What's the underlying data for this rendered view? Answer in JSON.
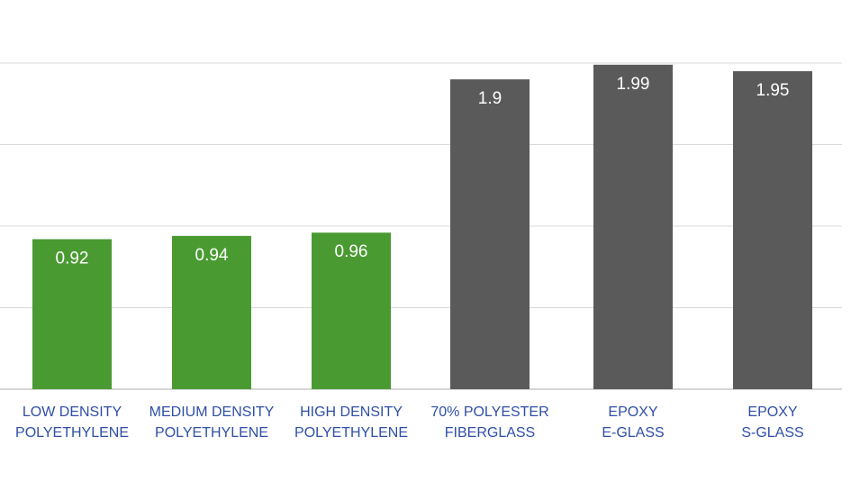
{
  "chart_data": {
    "type": "bar",
    "categories": [
      [
        "LOW DENSITY",
        "POLYETHYLENE"
      ],
      [
        "MEDIUM DENSITY",
        "POLYETHYLENE"
      ],
      [
        "HIGH DENSITY",
        "POLYETHYLENE"
      ],
      [
        "70% POLYESTER",
        "FIBERGLASS"
      ],
      [
        "EPOXY",
        "E-GLASS"
      ],
      [
        "EPOXY",
        "S-GLASS"
      ]
    ],
    "values": [
      0.92,
      0.94,
      0.96,
      1.9,
      1.99,
      1.95
    ],
    "value_labels": [
      "0.92",
      "0.94",
      "0.96",
      "1.9",
      "1.99",
      "1.95"
    ],
    "bar_colors": [
      "#4a9a32",
      "#4a9a32",
      "#4a9a32",
      "#5a5a5a",
      "#5a5a5a",
      "#5a5a5a"
    ],
    "ylim": [
      0,
      2
    ],
    "grid": true,
    "gridline_values": [
      0.5,
      1.0,
      1.5,
      2.0
    ],
    "colors": {
      "grid": "#d9d9d9",
      "baseline": "#c8c8c8",
      "category_text": "#2f4fa8",
      "value_text": "#ffffff"
    }
  }
}
